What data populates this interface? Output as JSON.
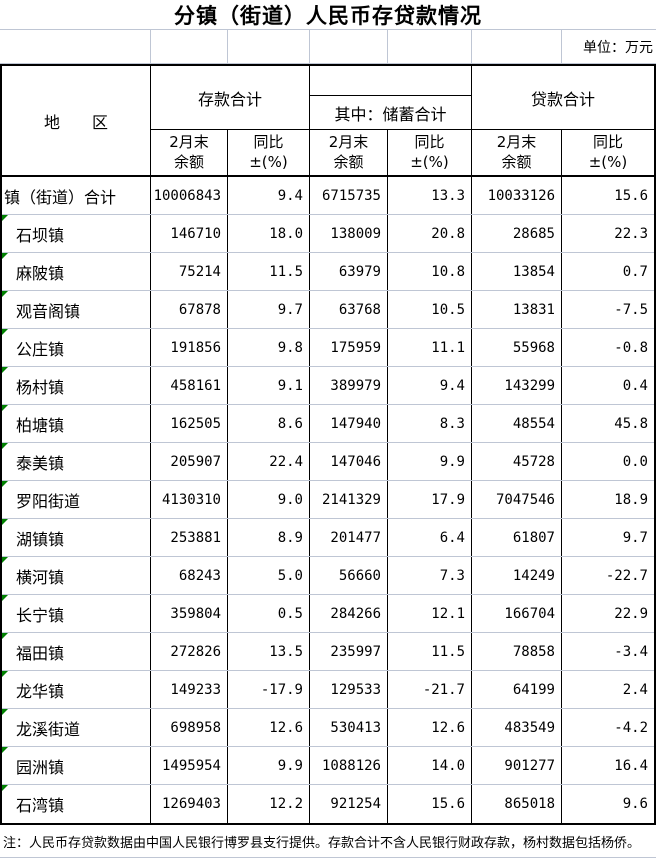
{
  "title": "分镇（街道）人民币存贷款情况",
  "unit_label": "单位：万元",
  "table": {
    "region_header": "地　　区",
    "groups": {
      "deposit": "存款合计",
      "savings": "其中：储蓄合计",
      "loan": "贷款合计"
    },
    "sub_headers": [
      {
        "l1": "2月末",
        "l2": "余额"
      },
      {
        "l1": "同比",
        "l2": "±(%)"
      },
      {
        "l1": "2月末",
        "l2": "余额"
      },
      {
        "l1": "同比",
        "l2": "±(%)"
      },
      {
        "l1": "2月末",
        "l2": "余额"
      },
      {
        "l1": "同比",
        "l2": "±(%)"
      }
    ],
    "rows": [
      {
        "region": "镇（街道）合计",
        "is_total": true,
        "marker": false,
        "values": [
          "10006843",
          "9.4",
          "6715735",
          "13.3",
          "10033126",
          "15.6"
        ]
      },
      {
        "region": "石坝镇",
        "is_total": false,
        "marker": true,
        "values": [
          "146710",
          "18.0",
          "138009",
          "20.8",
          "28685",
          "22.3"
        ]
      },
      {
        "region": "麻陂镇",
        "is_total": false,
        "marker": true,
        "values": [
          "75214",
          "11.5",
          "63979",
          "10.8",
          "13854",
          "0.7"
        ]
      },
      {
        "region": "观音阁镇",
        "is_total": false,
        "marker": true,
        "values": [
          "67878",
          "9.7",
          "63768",
          "10.5",
          "13831",
          "-7.5"
        ]
      },
      {
        "region": "公庄镇",
        "is_total": false,
        "marker": true,
        "values": [
          "191856",
          "9.8",
          "175959",
          "11.1",
          "55968",
          "-0.8"
        ]
      },
      {
        "region": "杨村镇",
        "is_total": false,
        "marker": true,
        "values": [
          "458161",
          "9.1",
          "389979",
          "9.4",
          "143299",
          "0.4"
        ]
      },
      {
        "region": "柏塘镇",
        "is_total": false,
        "marker": true,
        "values": [
          "162505",
          "8.6",
          "147940",
          "8.3",
          "48554",
          "45.8"
        ]
      },
      {
        "region": "泰美镇",
        "is_total": false,
        "marker": true,
        "values": [
          "205907",
          "22.4",
          "147046",
          "9.9",
          "45728",
          "0.0"
        ]
      },
      {
        "region": "罗阳街道",
        "is_total": false,
        "marker": true,
        "values": [
          "4130310",
          "9.0",
          "2141329",
          "17.9",
          "7047546",
          "18.9"
        ]
      },
      {
        "region": "湖镇镇",
        "is_total": false,
        "marker": true,
        "values": [
          "253881",
          "8.9",
          "201477",
          "6.4",
          "61807",
          "9.7"
        ]
      },
      {
        "region": "横河镇",
        "is_total": false,
        "marker": true,
        "values": [
          "68243",
          "5.0",
          "56660",
          "7.3",
          "14249",
          "-22.7"
        ]
      },
      {
        "region": "长宁镇",
        "is_total": false,
        "marker": true,
        "values": [
          "359804",
          "0.5",
          "284266",
          "12.1",
          "166704",
          "22.9"
        ]
      },
      {
        "region": "福田镇",
        "is_total": false,
        "marker": true,
        "values": [
          "272826",
          "13.5",
          "235997",
          "11.5",
          "78858",
          "-3.4"
        ]
      },
      {
        "region": "龙华镇",
        "is_total": false,
        "marker": true,
        "values": [
          "149233",
          "-17.9",
          "129533",
          "-21.7",
          "64199",
          "2.4"
        ]
      },
      {
        "region": "龙溪街道",
        "is_total": false,
        "marker": true,
        "values": [
          "698958",
          "12.6",
          "530413",
          "12.6",
          "483549",
          "-4.2"
        ]
      },
      {
        "region": "园洲镇",
        "is_total": false,
        "marker": true,
        "values": [
          "1495954",
          "9.9",
          "1088126",
          "14.0",
          "901277",
          "16.4"
        ]
      },
      {
        "region": "石湾镇",
        "is_total": false,
        "marker": true,
        "values": [
          "1269403",
          "12.2",
          "921254",
          "15.6",
          "865018",
          "9.6"
        ]
      }
    ]
  },
  "note": "注：人民币存贷款数据由中国人民银行博罗县支行提供。存款合计不含人民银行财政存款，杨村数据包括杨侨。",
  "colors": {
    "border_black": "#000000",
    "grid_line": "#bfc6d4",
    "error_marker_green": "#008000",
    "background": "#ffffff"
  },
  "icons": {
    "cell_error_marker": "green-triangle-top-left"
  }
}
